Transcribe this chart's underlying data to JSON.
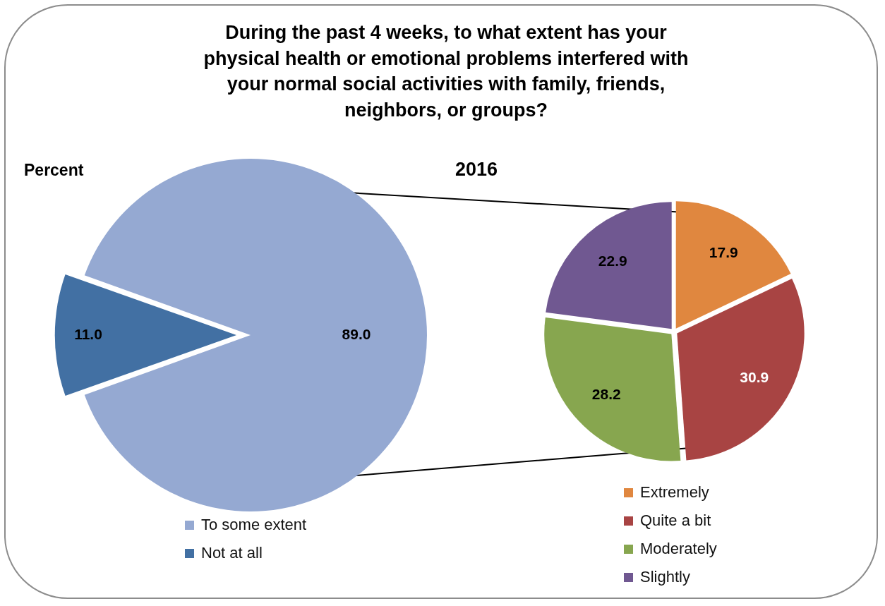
{
  "chart_data": [
    {
      "type": "pie",
      "title": "During the past 4 weeks, to what extent has your physical health or emotional problems interfered with your normal social activities with family, friends, neighbors, or groups?",
      "annotations": [
        "Percent"
      ],
      "categories": [
        "To some extent",
        "Not at all"
      ],
      "values": [
        89.0,
        11.0
      ],
      "value_labels": [
        "89.0",
        "11.0"
      ],
      "colors": [
        "#95a9d2",
        "#4270a3"
      ],
      "legend": "bottom"
    },
    {
      "type": "pie",
      "title": "2016",
      "categories": [
        "Extremely",
        "Quite a bit",
        "Moderately",
        "Slightly"
      ],
      "values": [
        17.9,
        30.9,
        28.2,
        22.9
      ],
      "value_labels": [
        "17.9",
        "30.9",
        "28.2",
        "22.9"
      ],
      "colors": [
        "#e0873f",
        "#a84443",
        "#87a64f",
        "#705891"
      ],
      "legend": "bottom right"
    }
  ]
}
